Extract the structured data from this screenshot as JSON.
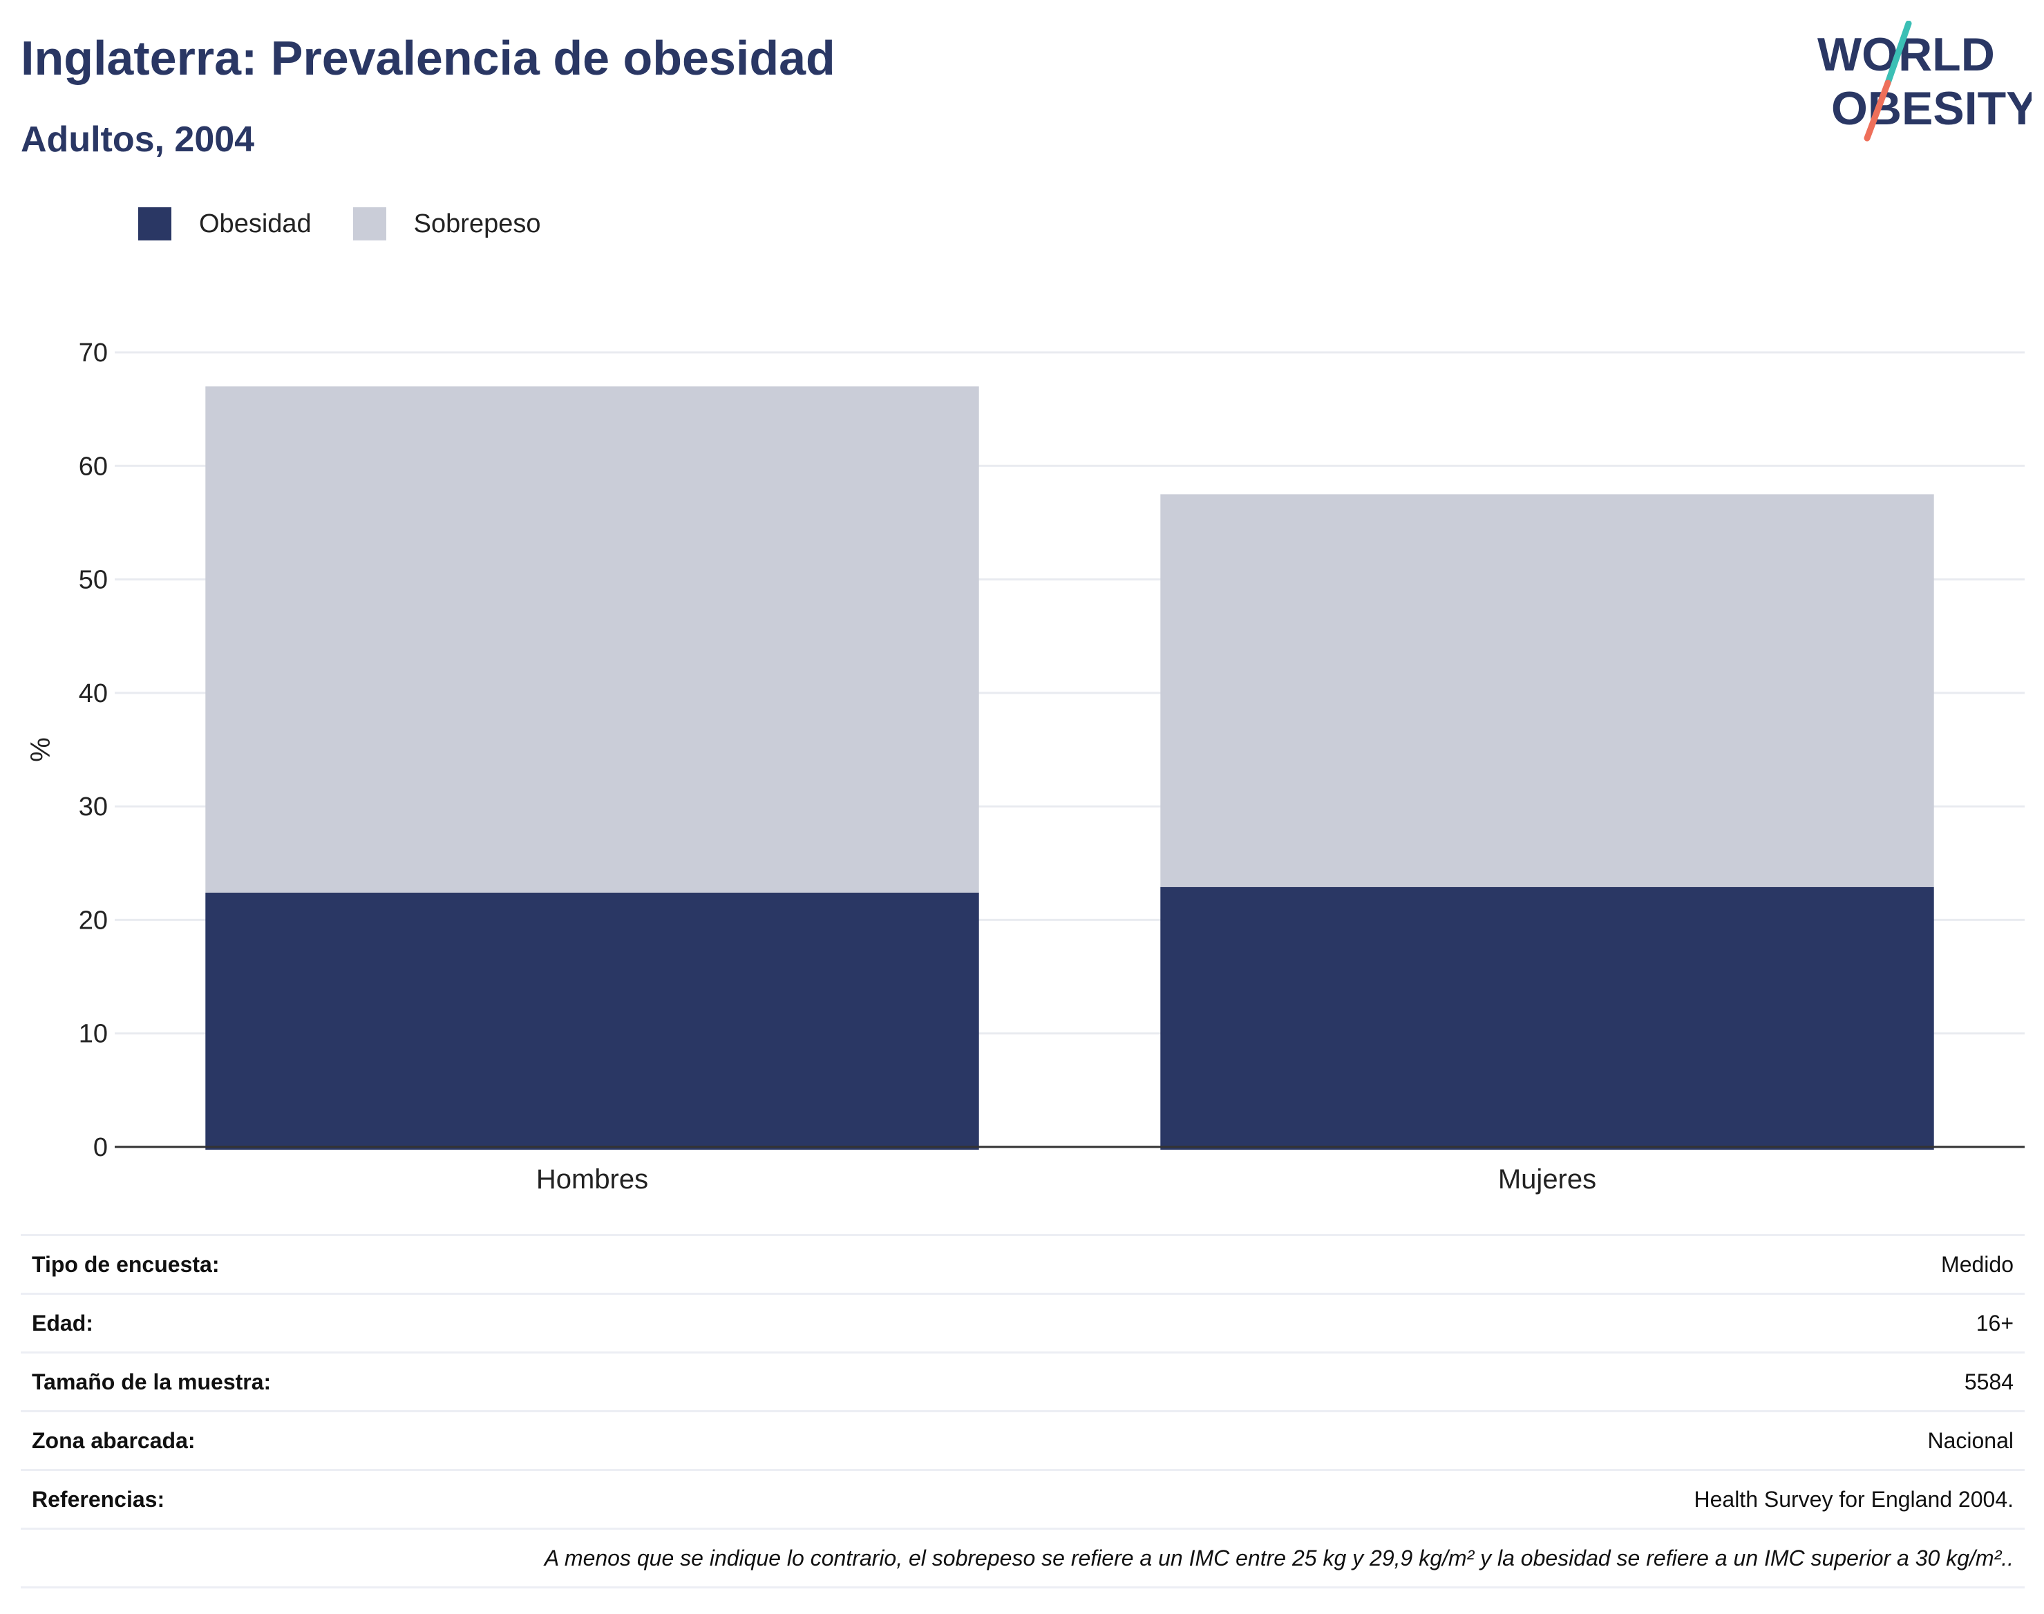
{
  "header": {
    "title": "Inglaterra: Prevalencia de obesidad",
    "subtitle": "Adultos, 2004"
  },
  "logo": {
    "line1": "WORLD",
    "line2": "OBESITY",
    "colors": {
      "text": "#2a3764",
      "slash_top": "#3bbfb5",
      "slash_bottom": "#ee6f5a"
    }
  },
  "legend": {
    "items": [
      {
        "label": "Obesidad",
        "color": "#2a3764"
      },
      {
        "label": "Sobrepeso",
        "color": "#cacdd8"
      }
    ]
  },
  "chart_data": {
    "type": "bar",
    "stacked": true,
    "categories": [
      "Hombres",
      "Mujeres"
    ],
    "series": [
      {
        "name": "Obesidad",
        "values": [
          22.4,
          22.9
        ],
        "color": "#2a3764"
      },
      {
        "name": "Sobrepeso",
        "values": [
          44.6,
          34.6
        ],
        "color": "#cacdd8"
      }
    ],
    "ylabel": "%",
    "xlabel": "",
    "ylim": [
      0,
      70
    ],
    "yticks": [
      0,
      10,
      20,
      30,
      40,
      50,
      60,
      70
    ],
    "grid": true,
    "legend_position": "top-left"
  },
  "info": {
    "rows": [
      {
        "label": "Tipo de encuesta:",
        "value": "Medido"
      },
      {
        "label": "Edad:",
        "value": "16+"
      },
      {
        "label": "Tamaño de la muestra:",
        "value": "5584"
      },
      {
        "label": "Zona abarcada:",
        "value": "Nacional"
      },
      {
        "label": "Referencias:",
        "value": "Health Survey for England 2004."
      }
    ],
    "note": "A menos que se indique lo contrario, el sobrepeso se refiere a un IMC entre 25 kg y 29,9 kg/m² y la obesidad se refiere a un IMC superior a 30 kg/m².."
  }
}
